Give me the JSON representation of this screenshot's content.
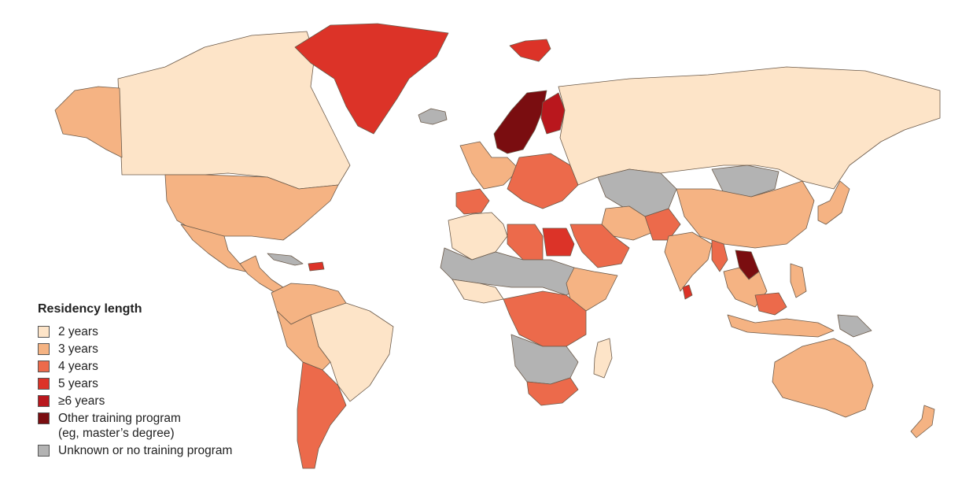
{
  "legend": {
    "title": "Residency length",
    "items": [
      {
        "key": "2y",
        "label": "2 years",
        "color": "#fde4c8"
      },
      {
        "key": "3y",
        "label": "3 years",
        "color": "#f5b383"
      },
      {
        "key": "4y",
        "label": "4 years",
        "color": "#ec6a4b"
      },
      {
        "key": "5y",
        "label": "5 years",
        "color": "#dc3328"
      },
      {
        "key": "6y",
        "label": "≥6 years",
        "color": "#b9171d"
      },
      {
        "key": "other",
        "label": "Other training program\n(eg, master’s degree)",
        "color": "#7a0d10"
      },
      {
        "key": "unknown",
        "label": "Unknown or no training program",
        "color": "#b3b3b3"
      }
    ]
  },
  "regions": [
    {
      "name": "canada",
      "category": "2y"
    },
    {
      "name": "alaska",
      "category": "3y"
    },
    {
      "name": "greenland",
      "category": "5y"
    },
    {
      "name": "iceland",
      "category": "unknown"
    },
    {
      "name": "usa",
      "category": "3y"
    },
    {
      "name": "mexico",
      "category": "3y"
    },
    {
      "name": "central-america",
      "category": "3y"
    },
    {
      "name": "cuba",
      "category": "unknown"
    },
    {
      "name": "haiti",
      "category": "5y"
    },
    {
      "name": "colombia-venezuela",
      "category": "3y"
    },
    {
      "name": "brazil",
      "category": "2y"
    },
    {
      "name": "peru-bolivia",
      "category": "3y"
    },
    {
      "name": "argentina-chile",
      "category": "4y"
    },
    {
      "name": "russia",
      "category": "2y"
    },
    {
      "name": "norway-sweden",
      "category": "other"
    },
    {
      "name": "finland",
      "category": "6y"
    },
    {
      "name": "western-europe",
      "category": "3y"
    },
    {
      "name": "iberia",
      "category": "4y"
    },
    {
      "name": "central-europe",
      "category": "4y"
    },
    {
      "name": "svalbard",
      "category": "5y"
    },
    {
      "name": "north-africa",
      "category": "2y"
    },
    {
      "name": "libya",
      "category": "4y"
    },
    {
      "name": "egypt",
      "category": "5y"
    },
    {
      "name": "sahel",
      "category": "unknown"
    },
    {
      "name": "west-africa",
      "category": "2y"
    },
    {
      "name": "central-africa",
      "category": "4y"
    },
    {
      "name": "horn-of-africa",
      "category": "3y"
    },
    {
      "name": "southern-africa",
      "category": "unknown"
    },
    {
      "name": "south-africa",
      "category": "4y"
    },
    {
      "name": "madagascar",
      "category": "2y"
    },
    {
      "name": "arabia",
      "category": "4y"
    },
    {
      "name": "iran",
      "category": "3y"
    },
    {
      "name": "central-asia",
      "category": "unknown"
    },
    {
      "name": "pakistan",
      "category": "4y"
    },
    {
      "name": "india",
      "category": "3y"
    },
    {
      "name": "mongolia",
      "category": "unknown"
    },
    {
      "name": "china",
      "category": "3y"
    },
    {
      "name": "korea-japan",
      "category": "3y"
    },
    {
      "name": "southeast-asia",
      "category": "3y"
    },
    {
      "name": "laos",
      "category": "other"
    },
    {
      "name": "myanmar",
      "category": "4y"
    },
    {
      "name": "indonesia",
      "category": "3y"
    },
    {
      "name": "malaysia",
      "category": "4y"
    },
    {
      "name": "philippines",
      "category": "3y"
    },
    {
      "name": "png",
      "category": "unknown"
    },
    {
      "name": "australia",
      "category": "3y"
    },
    {
      "name": "new-zealand",
      "category": "3y"
    },
    {
      "name": "sri-lanka",
      "category": "5y"
    }
  ]
}
